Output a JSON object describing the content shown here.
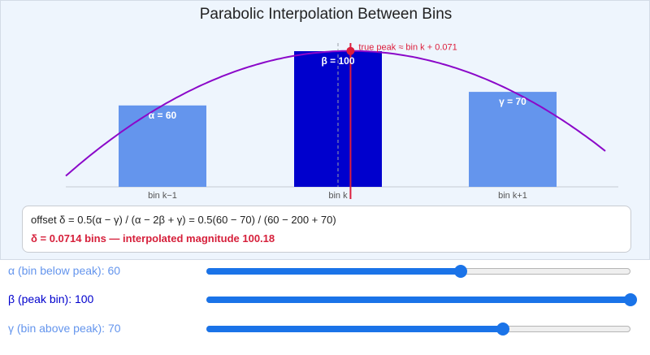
{
  "chart_data": {
    "type": "bar",
    "title": "Parabolic Interpolation Between Bins",
    "categories": [
      "bin k−1",
      "bin k",
      "bin k+1"
    ],
    "values": [
      60,
      100,
      70
    ],
    "bar_labels": [
      "α = 60",
      "β = 100",
      "γ = 70"
    ],
    "offset": 0.0714,
    "peak_magnitude": 100.18,
    "peak_label": "true peak ≈ bin k + 0.071",
    "ylim": [
      0,
      105
    ],
    "colors": {
      "bar": "#6495ed",
      "peak_bar": "#0000cd",
      "parabola": "#8b08c9",
      "peak_marker": "#dc1e3c"
    }
  },
  "formula": {
    "line1": "offset δ = 0.5(α − γ) / (α − 2β + γ) = 0.5(60 − 70) / (60 − 200 + 70)",
    "line2": "δ = 0.0714 bins   —   interpolated magnitude 100.18"
  },
  "controls": [
    {
      "label": "α  (bin below peak): 60",
      "value": 60,
      "max": 100,
      "color": "#6495ed"
    },
    {
      "label": "β  (peak bin): 100",
      "value": 100,
      "max": 100,
      "color": "#0000cd"
    },
    {
      "label": "γ  (bin above peak): 70",
      "value": 70,
      "max": 100,
      "color": "#6495ed"
    }
  ]
}
